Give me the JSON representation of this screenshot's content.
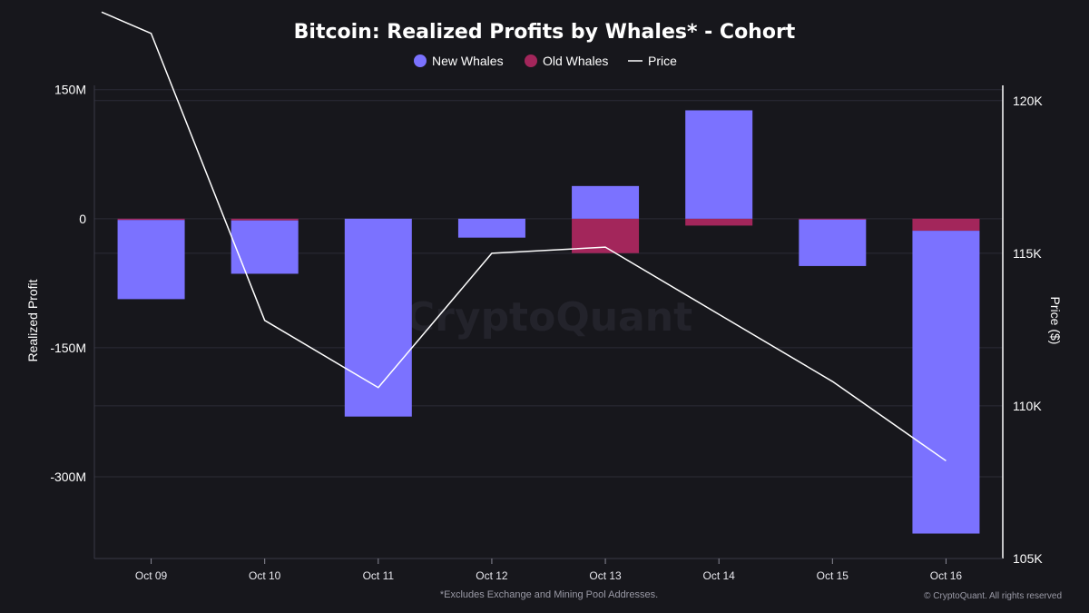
{
  "title": "Bitcoin: Realized Profits by Whales* - Cohort",
  "footnote": "*Excludes Exchange and Mining Pool Addresses.",
  "copyright": "© CryptoQuant. All rights reserved",
  "watermark": "CryptoQuant",
  "colors": {
    "background": "#17171c",
    "new_whales": "#7b72ff",
    "old_whales": "#a3265b",
    "price": "#ffffff",
    "grid": "#2c2c36"
  },
  "chart_data": {
    "type": "bar",
    "stacked": true,
    "categories": [
      "Oct 09",
      "Oct 10",
      "Oct 11",
      "Oct 12",
      "Oct 13",
      "Oct 14",
      "Oct 15",
      "Oct 16"
    ],
    "series": [
      {
        "name": "New Whales",
        "type": "bar",
        "axis": "left",
        "color": "#7b72ff",
        "values": [
          -92,
          -62,
          -230,
          -22,
          38,
          126,
          -54,
          -352
        ]
      },
      {
        "name": "Old Whales",
        "type": "bar",
        "axis": "left",
        "color": "#a3265b",
        "values": [
          -1.5,
          -2,
          0,
          0,
          -40,
          -8,
          -1,
          -14
        ]
      },
      {
        "name": "Price",
        "type": "line",
        "axis": "right",
        "color": "#ffffff",
        "values": [
          122200,
          112800,
          110600,
          115000,
          115200,
          113000,
          110800,
          108200
        ]
      }
    ],
    "price_start": 122900,
    "ylabel": "Realized Profit",
    "y2label": "Price ($)",
    "ylim": [
      -395,
      155
    ],
    "yticks": [
      150,
      0,
      -150,
      -300
    ],
    "ytick_labels": [
      "150M",
      "0",
      "-150M",
      "-300M"
    ],
    "y2lim": [
      105000,
      120500
    ],
    "y2ticks": [
      120000,
      115000,
      110000,
      105000
    ],
    "y2tick_labels": [
      "120K",
      "115K",
      "110K",
      "105K"
    ],
    "grid": true,
    "legend_position": "top-center"
  }
}
